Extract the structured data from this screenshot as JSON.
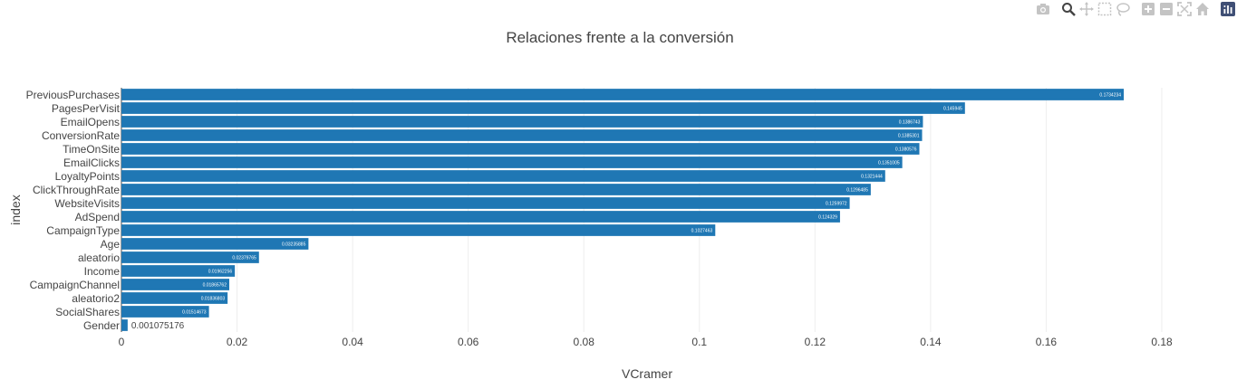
{
  "colors": {
    "bar": "#1f77b4",
    "grid": "#eeeeee",
    "text": "#444444",
    "modebar_icon": "#c4c4c4",
    "logo_bg": "#3f4f75"
  },
  "modebar": [
    "camera-icon",
    "zoom-icon",
    "pan-icon",
    "box-select-icon",
    "lasso-icon",
    "zoom-in-icon",
    "zoom-out-icon",
    "autoscale-icon",
    "home-icon",
    "plotly-logo-icon"
  ],
  "chart_data": {
    "type": "bar",
    "orientation": "horizontal",
    "title": "Relaciones frente a la conversión",
    "xlabel": "VCramer",
    "ylabel": "index",
    "xlim": [
      0,
      0.18
    ],
    "xticks": [
      0,
      0.02,
      0.04,
      0.06,
      0.08,
      0.1,
      0.12,
      0.14,
      0.16,
      0.18
    ],
    "xtick_labels": [
      "0",
      "0.02",
      "0.04",
      "0.06",
      "0.08",
      "0.1",
      "0.12",
      "0.14",
      "0.16",
      "0.18"
    ],
    "grid": true,
    "categories": [
      "PreviousPurchases",
      "PagesPerVisit",
      "EmailOpens",
      "ConversionRate",
      "TimeOnSite",
      "EmailClicks",
      "LoyaltyPoints",
      "ClickThroughRate",
      "WebsiteVisits",
      "AdSpend",
      "CampaignType",
      "Age",
      "aleatorio",
      "Income",
      "CampaignChannel",
      "aleatorio2",
      "SocialShares",
      "Gender"
    ],
    "values": [
      0.1734234,
      0.145945,
      0.1386743,
      0.1385301,
      0.1380576,
      0.1351005,
      0.1321444,
      0.1296485,
      0.1259972,
      0.124329,
      0.1027463,
      0.03235885,
      0.02379765,
      0.01962256,
      0.01865762,
      0.01836803,
      0.01514673,
      0.001075176
    ],
    "labels": [
      "0.1734234",
      "0.145945",
      "0.1386743",
      "0.1385301",
      "0.1380576",
      "0.1351005",
      "0.1321444",
      "0.1296485",
      "0.1259972",
      "0.124329",
      "0.1027463",
      "0.03235885",
      "0.02379765",
      "0.01962256",
      "0.01865762",
      "0.01836803",
      "0.01514673",
      "0.001075176"
    ]
  }
}
